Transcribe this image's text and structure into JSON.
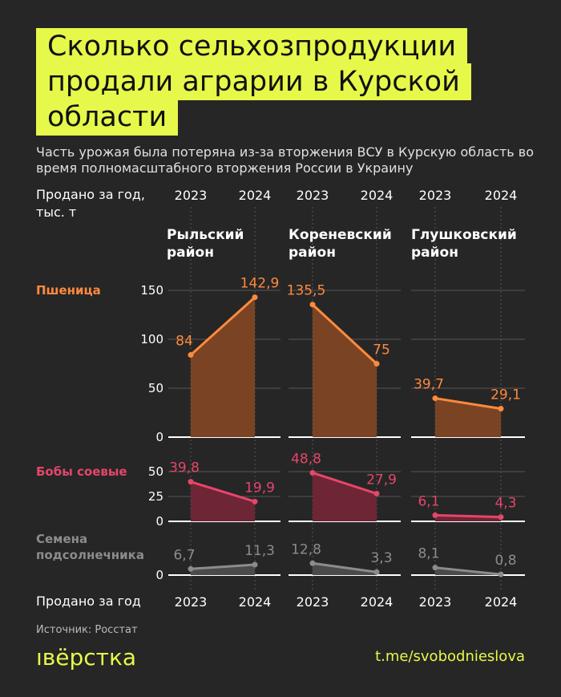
{
  "title": "Сколько сельхозпродукции продали аграрии в Курской области",
  "subtitle": "Часть урожая была потеряна из-за вторжения ВСУ в Курскую область во время полномасштабного вторжения России в Украину",
  "chart_data": {
    "type": "area",
    "y_axis_label": "Продано за год, тыс. т",
    "x_axis_label": "Продано за год",
    "categories": [
      "2023",
      "2024"
    ],
    "panels": [
      "Рыльский район",
      "Кореневский район",
      "Глушковский район"
    ],
    "rows": [
      {
        "name": "Пшеница",
        "color": "#ff8a3d",
        "fill": "#7a4424",
        "ylim": [
          0,
          150
        ],
        "yticks": [
          0,
          50,
          100,
          150
        ],
        "series": [
          {
            "values": [
              84,
              142.9
            ],
            "value_labels": [
              "84",
              "142,9"
            ]
          },
          {
            "values": [
              135.5,
              75
            ],
            "value_labels": [
              "135,5",
              "75"
            ]
          },
          {
            "values": [
              39.7,
              29.1
            ],
            "value_labels": [
              "39,7",
              "29,1"
            ]
          }
        ]
      },
      {
        "name": "Бобы соевые",
        "color": "#e5466a",
        "fill": "#6e2535",
        "ylim": [
          0,
          50
        ],
        "yticks": [
          0,
          25,
          50
        ],
        "series": [
          {
            "values": [
              39.8,
              19.9
            ],
            "value_labels": [
              "39,8",
              "19,9"
            ]
          },
          {
            "values": [
              48.8,
              27.9
            ],
            "value_labels": [
              "48,8",
              "27,9"
            ]
          },
          {
            "values": [
              6.1,
              4.3
            ],
            "value_labels": [
              "6,1",
              "4,3"
            ]
          }
        ]
      },
      {
        "name": "Семена подсолнечника",
        "color": "#8c8c8c",
        "fill": "#4a4a4a",
        "ylim": [
          0,
          20
        ],
        "yticks": [
          0
        ],
        "series": [
          {
            "values": [
              6.7,
              11.3
            ],
            "value_labels": [
              "6,7",
              "11,3"
            ]
          },
          {
            "values": [
              12.8,
              3.3
            ],
            "value_labels": [
              "12,8",
              "3,3"
            ]
          },
          {
            "values": [
              8.1,
              0.8
            ],
            "value_labels": [
              "8,1",
              "0,8"
            ]
          }
        ]
      }
    ]
  },
  "source": "Источник: Росстат",
  "brand": "ıвёрстка",
  "link": "t.me/svobodnieslova"
}
